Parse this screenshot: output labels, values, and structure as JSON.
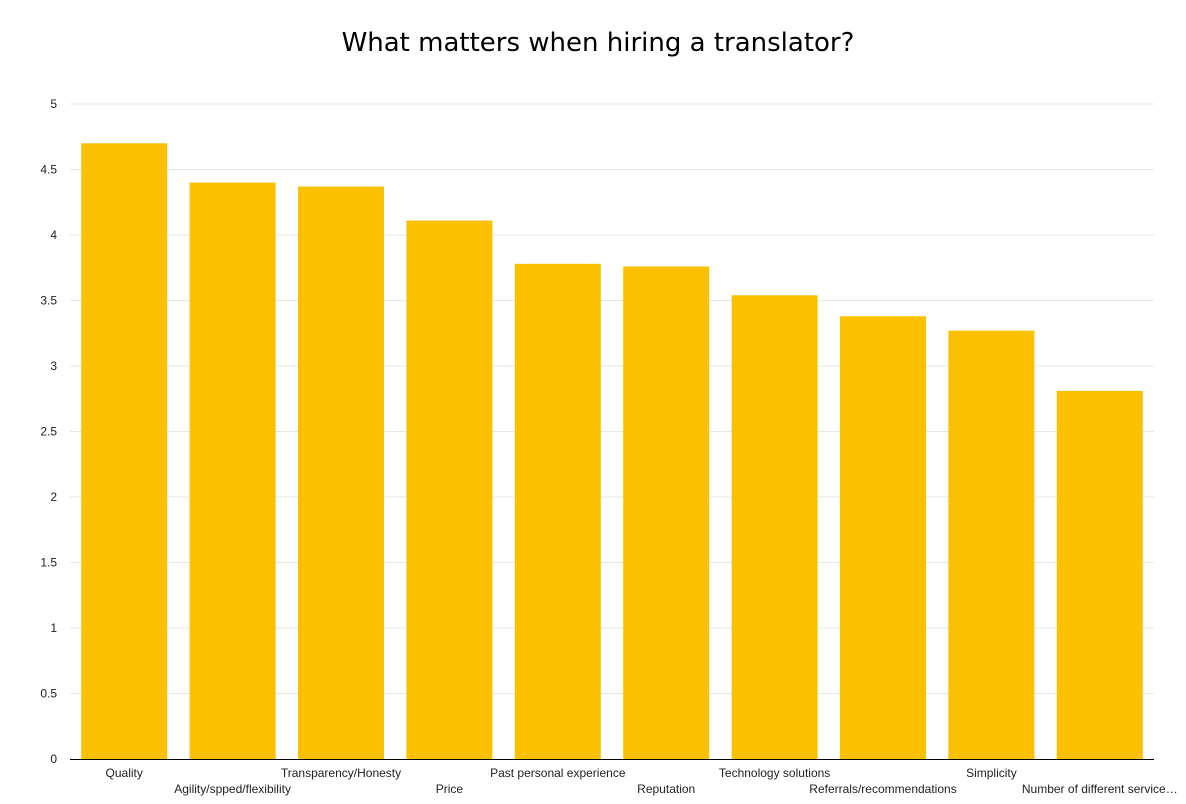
{
  "chart_data": {
    "type": "bar",
    "title": "What matters when hiring a translator?",
    "xlabel": "",
    "ylabel": "",
    "ylim": [
      0,
      5
    ],
    "yticks": [
      "0",
      "0.5",
      "1",
      "1.5",
      "2",
      "2.5",
      "3",
      "3.5",
      "4",
      "4.5",
      "5"
    ],
    "categories": [
      "Quality",
      "Agility/spped/flexibility",
      "Transparency/Honesty",
      "Price",
      "Past personal experience",
      "Reputation",
      "Technology solutions",
      "Referrals/recommendations",
      "Simplicity",
      "Number of different service…"
    ],
    "values": [
      4.7,
      4.4,
      4.37,
      4.11,
      3.78,
      3.76,
      3.54,
      3.38,
      3.27,
      2.81
    ],
    "bar_color": "#fbc000",
    "gridline_color": "#e6e6e6",
    "axis_color": "#000000",
    "grid": true
  }
}
